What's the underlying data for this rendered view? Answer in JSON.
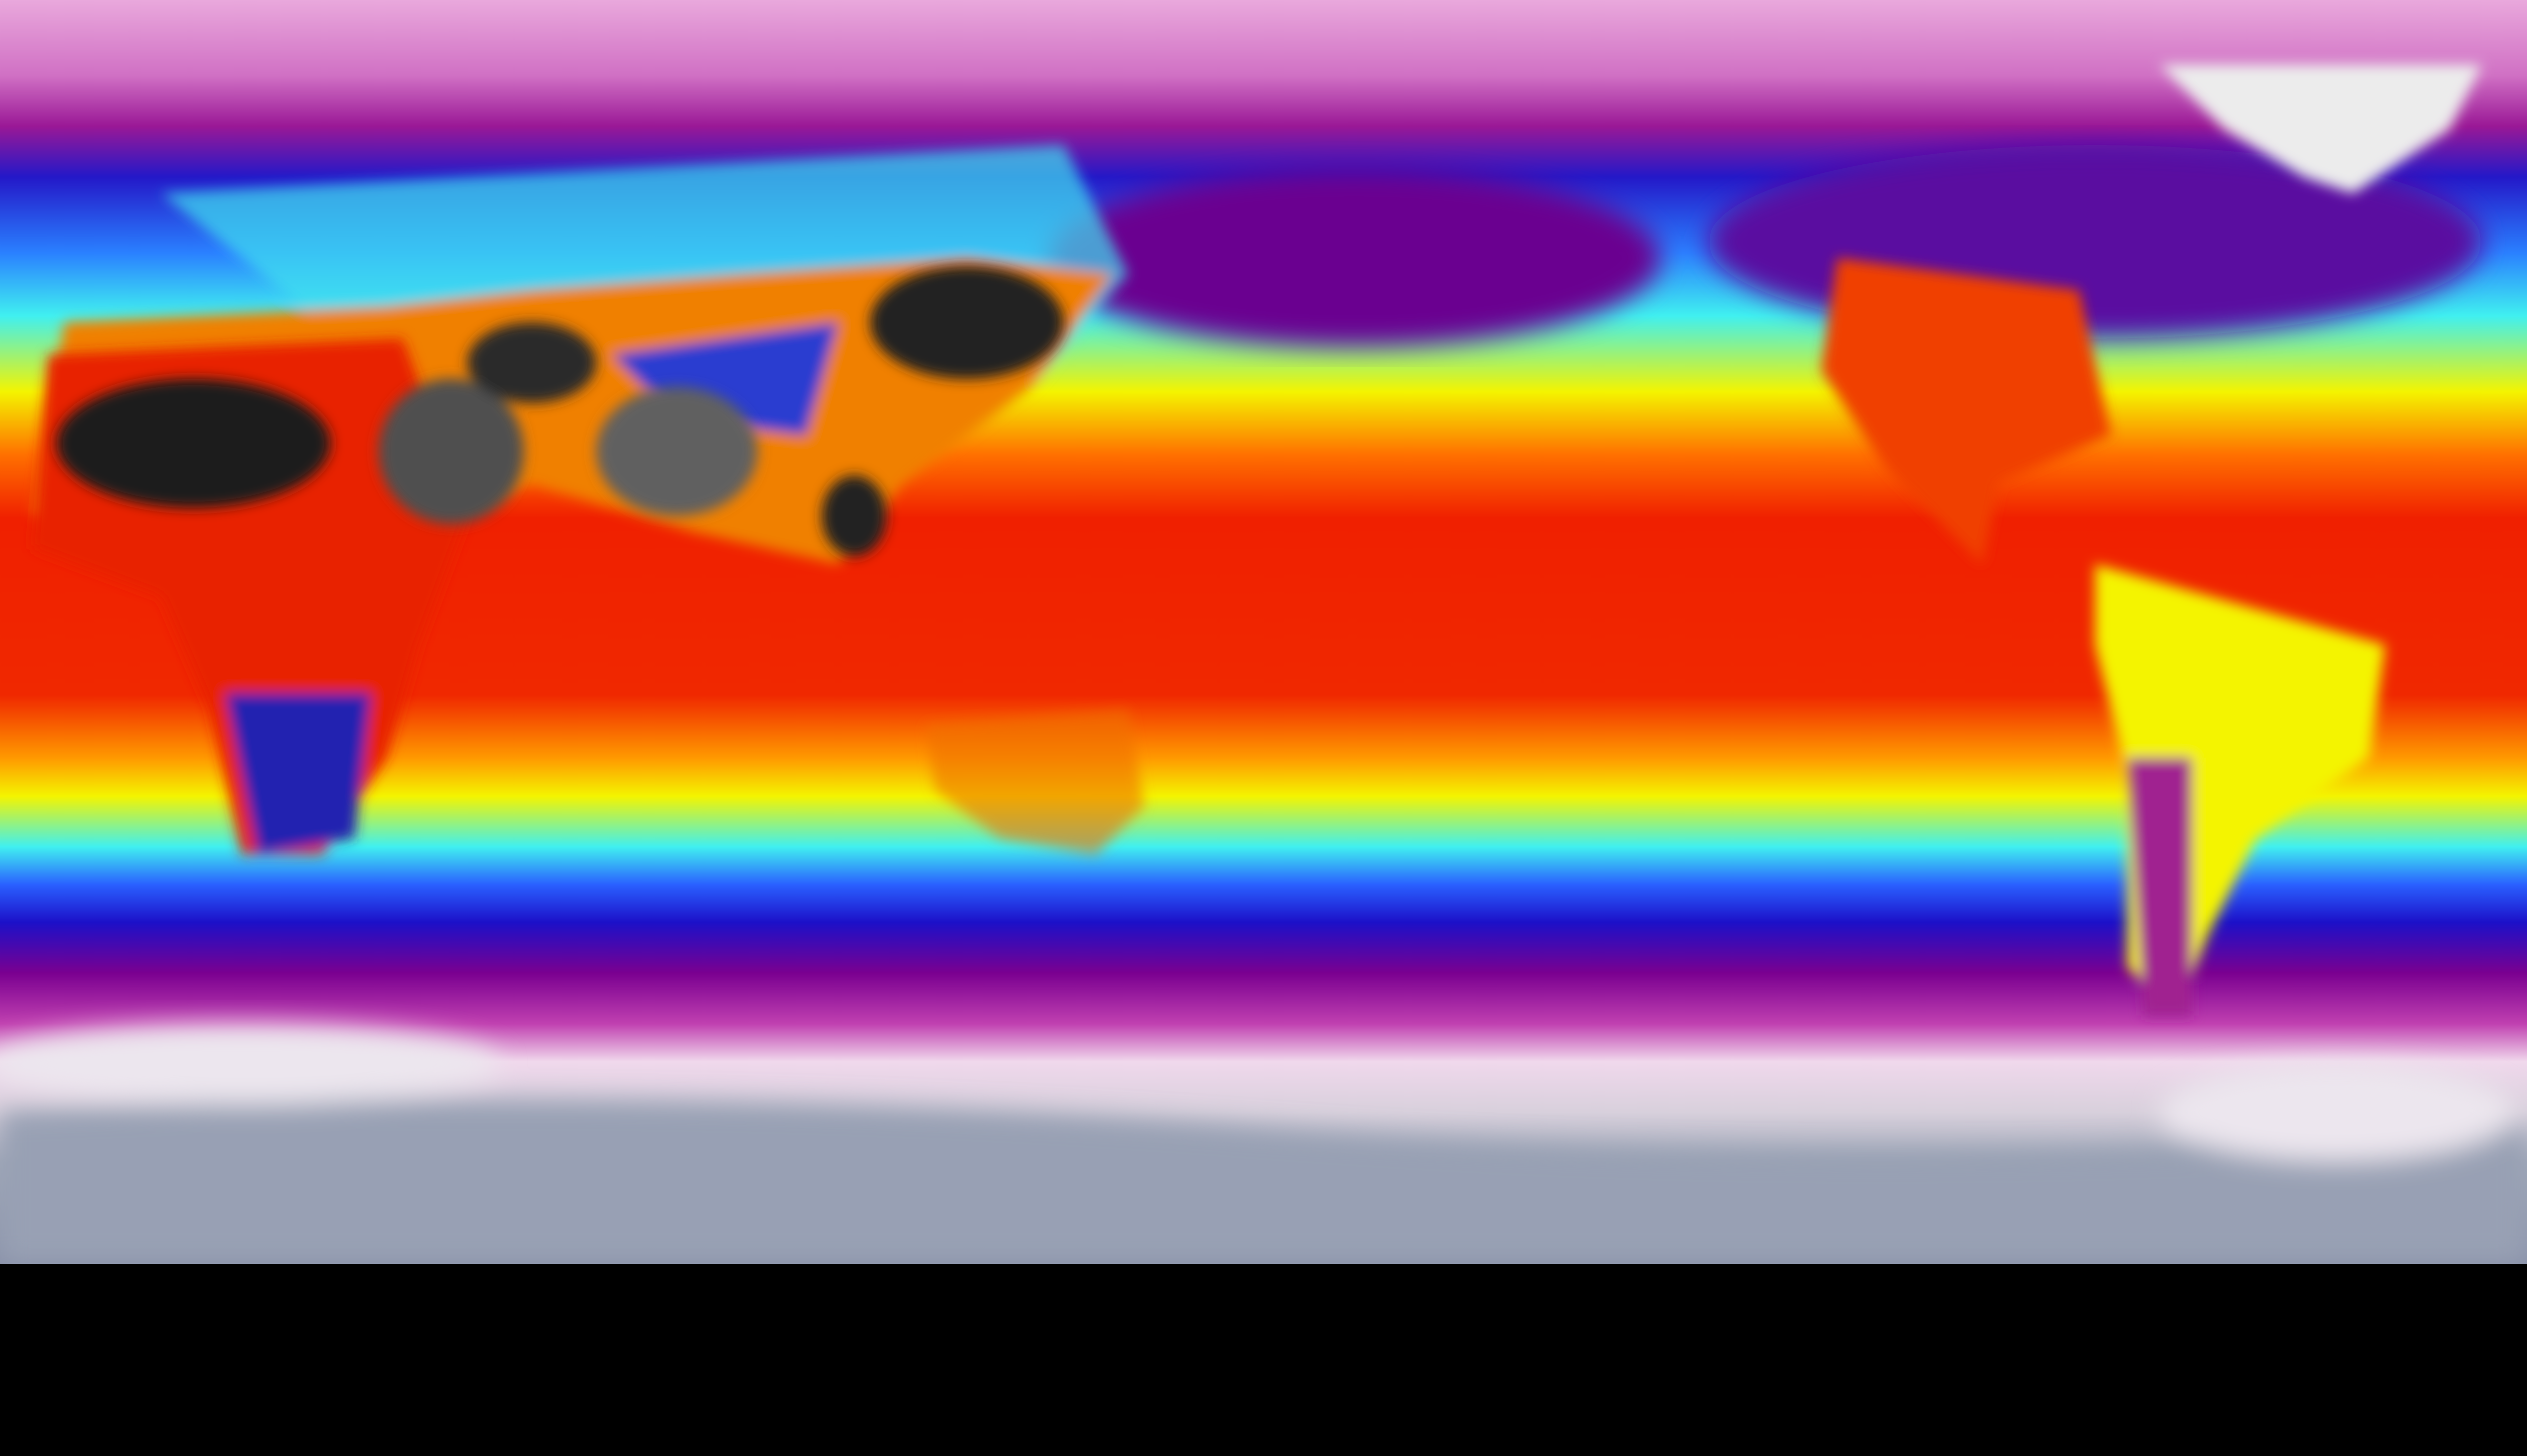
{
  "map": {
    "projection": "equirectangular",
    "color_scale": [
      "#e9a8dc",
      "#b0309e",
      "#7a0090",
      "#1c10c8",
      "#2a60ff",
      "#40f0f0",
      "#f4f400",
      "#ff9000",
      "#f02000",
      "#1c1c1c",
      "#d8d8d8"
    ],
    "colors": {
      "polar_high": "#d890cc",
      "cold": "#1818c8",
      "mild": "#40f0f0",
      "warm": "#f4f400",
      "hot": "#f02000",
      "extreme": "#1a1a1a",
      "ice": "#a0a8b8"
    }
  }
}
